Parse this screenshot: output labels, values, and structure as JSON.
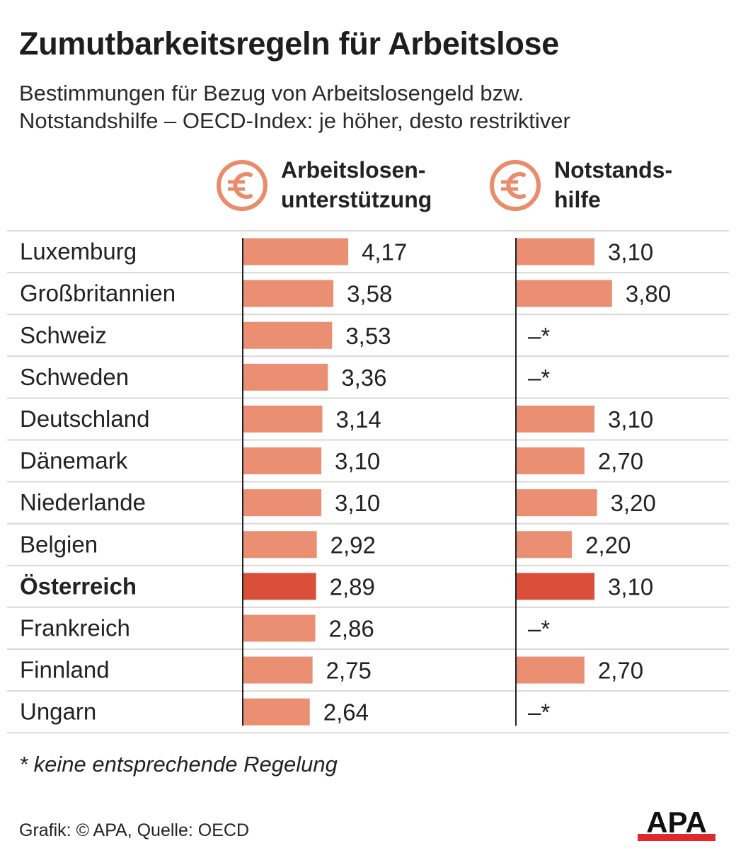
{
  "title": "Zumutbarkeitsregeln für Arbeitslose",
  "subtitle_lines": [
    "Bestimmungen für Bezug von Arbeitslosengeld bzw.",
    "Notstandshilfe – OECD-Index: je höher, desto restriktiver"
  ],
  "columns": [
    {
      "header_lines": [
        "Arbeitslosen-",
        "unterstützung"
      ],
      "icon": "euro-icon"
    },
    {
      "header_lines": [
        "Notstands-",
        "hilfe"
      ],
      "icon": "euro-icon"
    }
  ],
  "chart_data": {
    "type": "bar",
    "orientation": "horizontal",
    "categories": [
      "Luxemburg",
      "Großbritannien",
      "Schweiz",
      "Schweden",
      "Deutschland",
      "Dänemark",
      "Niederlande",
      "Belgien",
      "Österreich",
      "Frankreich",
      "Finnland",
      "Ungarn"
    ],
    "highlight": "Österreich",
    "series": [
      {
        "name": "Arbeitslosenunterstützung",
        "values": [
          4.17,
          3.58,
          3.53,
          3.36,
          3.14,
          3.1,
          3.1,
          2.92,
          2.89,
          2.86,
          2.75,
          2.64
        ],
        "labels": [
          "4,17",
          "3,58",
          "3,53",
          "3,36",
          "3,14",
          "3,10",
          "3,10",
          "2,92",
          "2,89",
          "2,86",
          "2,75",
          "2,64"
        ]
      },
      {
        "name": "Notstandshilfe",
        "values": [
          3.1,
          3.8,
          null,
          null,
          3.1,
          2.7,
          3.2,
          2.2,
          3.1,
          null,
          2.7,
          null
        ],
        "labels": [
          "3,10",
          "3,80",
          "–*",
          "–*",
          "3,10",
          "2,70",
          "3,20",
          "2,20",
          "3,10",
          "–*",
          "2,70",
          "–*"
        ]
      }
    ],
    "xlim": [
      0,
      4.2
    ],
    "colors": {
      "bar": "#eb8f72",
      "highlight": "#da4f39",
      "grid": "#d9d9d9",
      "axis": "#222222"
    }
  },
  "footnote": "* keine entsprechende Regelung",
  "source": "Grafik: © APA, Quelle: OECD",
  "logo_text": "APA",
  "icon_color": "#ea8c6c"
}
